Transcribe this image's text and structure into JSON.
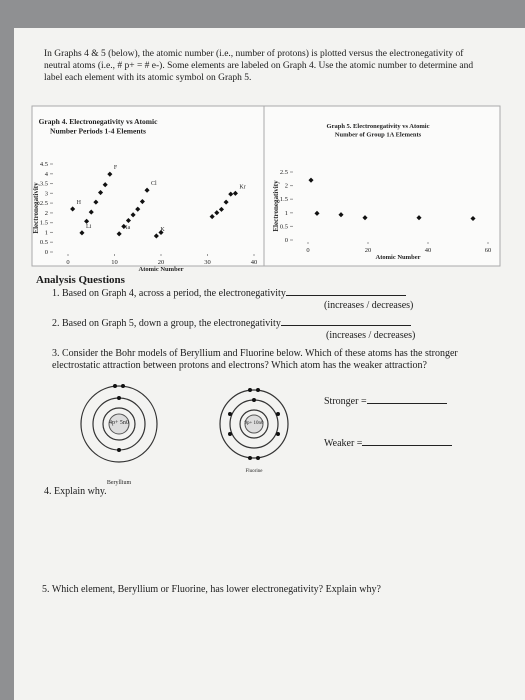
{
  "intro": "In Graphs 4 & 5 (below), the atomic number (i.e., number of protons) is plotted versus the electronegativity of neutral atoms (i.e., # p+ = # e-). Some elements are labeled on Graph 4. Use the atomic number to determine and label each element with its atomic symbol on Graph 5.",
  "analysis_heading": "Analysis Questions",
  "questions": [
    {
      "text": "1. Based on Graph 4, across a period, the electronegativity",
      "options": "(increases / decreases)"
    },
    {
      "text": "2. Based on Graph 5, down a group, the electronegativity",
      "options": "(increases / decreases)"
    },
    {
      "text": "3. Consider the Bohr models of Beryllium and Fluorine below. Which of these atoms has the stronger electrostatic attraction between protons and electrons? Which atom has the weaker attraction?"
    },
    {
      "text": "4. Explain why."
    },
    {
      "text": "5. Which element, Beryllium or Fluorine, has lower electronegativity? Explain why?"
    }
  ],
  "bohr": [
    {
      "name": "Beryllium",
      "nucleus": "4p+ 5n0"
    },
    {
      "name": "Fluorine",
      "nucleus": "9p+ 10n0"
    }
  ],
  "stronger": "Stronger =",
  "weaker": "Weaker =",
  "chart_data": [
    {
      "type": "scatter",
      "title": "Graph 4. Electronegativity vs Atomic Number Periods 1-4 Elements",
      "x_label": "Atomic Number",
      "y_label": "Electronegativity",
      "x": [
        1,
        3,
        4,
        5,
        6,
        7,
        8,
        9,
        11,
        12,
        13,
        14,
        15,
        16,
        17,
        19,
        20,
        31,
        32,
        33,
        34,
        35,
        36
      ],
      "values": [
        2.2,
        0.98,
        1.57,
        2.04,
        2.55,
        3.04,
        3.44,
        3.98,
        0.93,
        1.31,
        1.61,
        1.9,
        2.19,
        2.58,
        3.16,
        0.82,
        1.0,
        1.81,
        2.01,
        2.18,
        2.55,
        2.96,
        3.0
      ],
      "point_labels": [
        "H",
        "Li",
        null,
        null,
        null,
        null,
        null,
        "F",
        "Na",
        null,
        null,
        null,
        null,
        null,
        "Cl",
        "K",
        null,
        null,
        null,
        null,
        null,
        null,
        "Kr"
      ],
      "color": "#111111",
      "xlim": [
        0,
        40
      ],
      "xticks": [
        0,
        10,
        20,
        30,
        40
      ],
      "ylim": [
        0,
        4.5
      ],
      "yticks": [
        0,
        0.5,
        1,
        1.5,
        2,
        2.5,
        3,
        3.5,
        4,
        4.5
      ]
    },
    {
      "type": "scatter",
      "title": "Graph 5. Electronegativity vs Atomic Number of Group 1A Elements",
      "x_label": "Atomic Number",
      "y_label": "Electronegativity",
      "x": [
        1,
        3,
        11,
        19,
        37,
        55
      ],
      "values": [
        2.2,
        0.98,
        0.93,
        0.82,
        0.82,
        0.79
      ],
      "color": "#111111",
      "xlim": [
        0,
        60
      ],
      "xticks": [
        0,
        20,
        40,
        60
      ],
      "ylim": [
        0,
        2.5
      ],
      "yticks": [
        0,
        0.5,
        1,
        1.5,
        2,
        2.5
      ]
    }
  ]
}
